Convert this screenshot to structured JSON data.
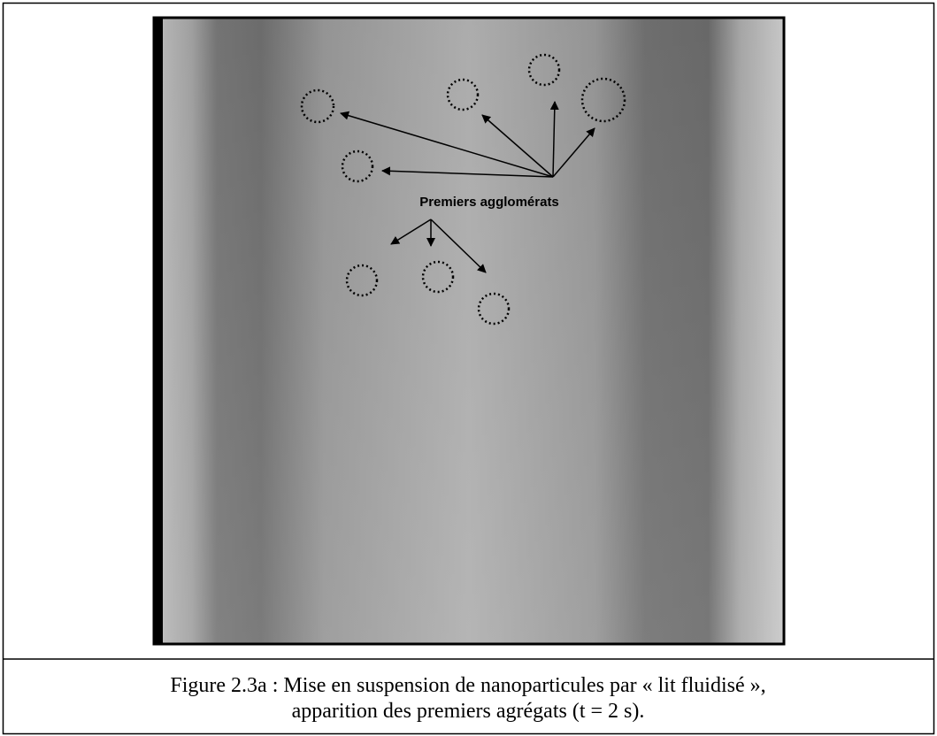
{
  "figure": {
    "annotation": "Premiers agglomérats",
    "caption": [
      "Figure 2.3a : Mise en suspension de nanoparticules par « lit fluidisé »,",
      "apparition des premiers agrégats (t = 2 s)."
    ]
  }
}
